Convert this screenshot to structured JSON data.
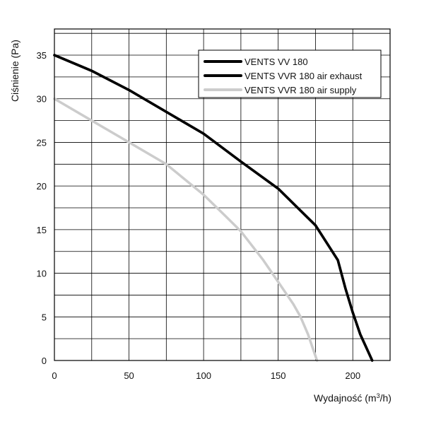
{
  "chart_data": {
    "type": "line",
    "xlabel": "Wydajność (m³/h)",
    "ylabel": "Ciśnienie (Pa)",
    "xlim": [
      0,
      225
    ],
    "ylim": [
      0,
      38
    ],
    "x_ticks": [
      0,
      50,
      100,
      150,
      200
    ],
    "y_ticks": [
      0,
      5,
      10,
      15,
      20,
      25,
      30,
      35
    ],
    "x_grid_step": 25,
    "y_grid_step": 2.5,
    "grid": true,
    "legend_position": "top-right",
    "series": [
      {
        "name": "VENTS VV 180",
        "color": "#000000",
        "x": [
          0,
          25,
          50,
          75,
          100,
          125,
          150,
          175,
          190,
          195,
          200,
          205,
          213
        ],
        "y": [
          35,
          33.2,
          31,
          28.5,
          26,
          22.8,
          19.7,
          15.5,
          11.5,
          8.3,
          5.5,
          3,
          0
        ]
      },
      {
        "name": "VENTS VVR 180 air exhaust",
        "color": "#000000",
        "x": [
          0,
          25,
          50,
          75,
          100,
          125,
          150,
          175,
          190,
          195,
          200,
          205,
          213
        ],
        "y": [
          35,
          33.2,
          31,
          28.5,
          26,
          22.8,
          19.7,
          15.5,
          11.5,
          8.3,
          5.5,
          3,
          0
        ]
      },
      {
        "name": "VENTS VVR 180 air supply",
        "color": "#cccccc",
        "x": [
          0,
          25,
          50,
          75,
          100,
          115,
          125,
          140,
          150,
          160,
          165,
          170,
          173,
          176
        ],
        "y": [
          30,
          27.5,
          25,
          22.5,
          19,
          16.5,
          14.8,
          11.5,
          9,
          6.5,
          5,
          3,
          1.5,
          0
        ]
      }
    ]
  }
}
